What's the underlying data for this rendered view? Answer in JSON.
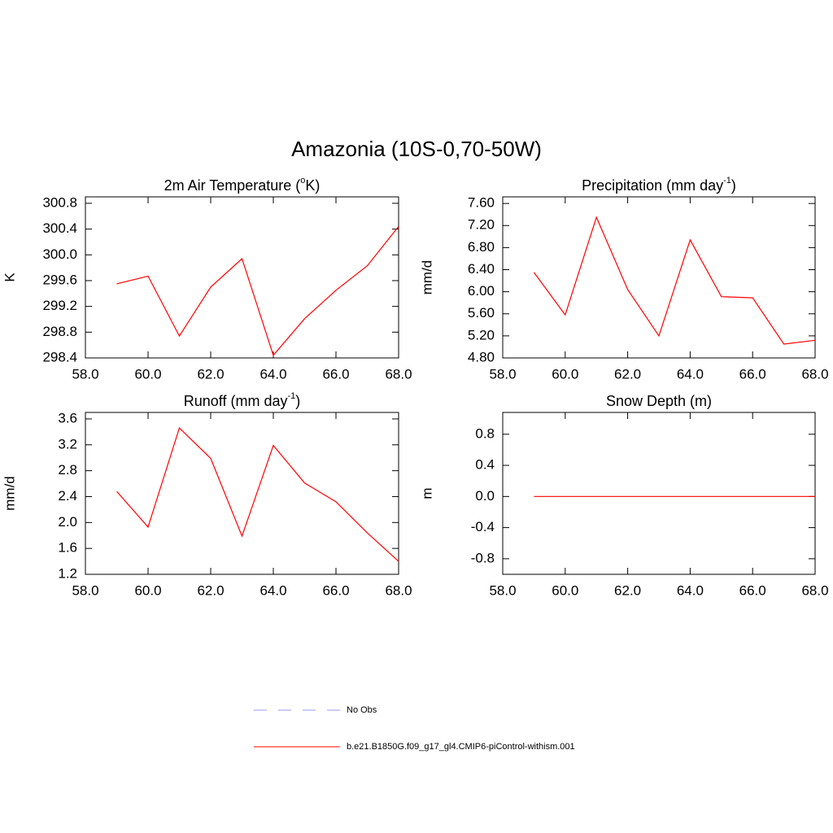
{
  "title": "Amazonia (10S-0,70-50W)",
  "legend": [
    {
      "name": "No Obs",
      "color": "#9999ff",
      "dash": true
    },
    {
      "name": "b.e21.B1850G.f09_g17_gl4.CMIP6-piControl-withism.001",
      "color": "#ff0000",
      "dash": false
    }
  ],
  "chart_data": [
    {
      "type": "line",
      "title": [
        {
          "text": "2m Air Temperature ("
        },
        {
          "text": "o",
          "sup": true
        },
        {
          "text": "K)"
        }
      ],
      "ylabel": "K",
      "x": [
        59,
        60,
        61,
        62,
        63,
        64,
        65,
        66,
        67,
        68
      ],
      "series": [
        {
          "color": "#ff0000",
          "values": [
            299.55,
            299.67,
            298.74,
            299.5,
            299.94,
            298.44,
            299.01,
            299.45,
            299.83,
            300.44
          ]
        }
      ],
      "xlim": [
        58,
        68
      ],
      "xticks": [
        {
          "value": 58,
          "label": "58.0"
        },
        {
          "value": 60,
          "label": "60.0"
        },
        {
          "value": 62,
          "label": "62.0"
        },
        {
          "value": 64,
          "label": "64.0"
        },
        {
          "value": 66,
          "label": "66.0"
        },
        {
          "value": 68,
          "label": "68.0"
        }
      ],
      "ylim": [
        298.4,
        300.9
      ],
      "yticks": [
        298.4,
        298.8,
        299.2,
        299.6,
        {
          "value": 300.0,
          "label": "300.0"
        },
        300.4,
        300.8
      ]
    },
    {
      "type": "line",
      "title": [
        {
          "text": "Precipitation (mm day"
        },
        {
          "text": "-1",
          "sup": true
        },
        {
          "text": ")"
        }
      ],
      "ylabel": "mm/d",
      "x": [
        59,
        60,
        61,
        62,
        63,
        64,
        65,
        66,
        67,
        68
      ],
      "series": [
        {
          "color": "#ff0000",
          "values": [
            6.35,
            5.58,
            7.35,
            6.04,
            5.2,
            6.94,
            5.91,
            5.89,
            5.05,
            5.12
          ]
        }
      ],
      "xlim": [
        58,
        68
      ],
      "xticks": [
        {
          "value": 58,
          "label": "58.0"
        },
        {
          "value": 60,
          "label": "60.0"
        },
        {
          "value": 62,
          "label": "62.0"
        },
        {
          "value": 64,
          "label": "64.0"
        },
        {
          "value": 66,
          "label": "66.0"
        },
        {
          "value": 68,
          "label": "68.0"
        }
      ],
      "ylim": [
        4.8,
        7.72
      ],
      "yticks": [
        {
          "value": 4.8,
          "label": "4.80"
        },
        {
          "value": 5.2,
          "label": "5.20"
        },
        {
          "value": 5.6,
          "label": "5.60"
        },
        {
          "value": 6.0,
          "label": "6.00"
        },
        {
          "value": 6.4,
          "label": "6.40"
        },
        {
          "value": 6.8,
          "label": "6.80"
        },
        {
          "value": 7.2,
          "label": "7.20"
        },
        {
          "value": 7.6,
          "label": "7.60"
        }
      ]
    },
    {
      "type": "line",
      "title": [
        {
          "text": "Runoff (mm day"
        },
        {
          "text": "-1",
          "sup": true
        },
        {
          "text": ")"
        }
      ],
      "ylabel": "mm/d",
      "x": [
        59,
        60,
        61,
        62,
        63,
        64,
        65,
        66,
        67,
        68
      ],
      "series": [
        {
          "color": "#ff0000",
          "values": [
            2.48,
            1.93,
            3.46,
            2.99,
            1.79,
            3.19,
            2.61,
            2.32,
            1.84,
            1.4
          ]
        }
      ],
      "xlim": [
        58,
        68
      ],
      "xticks": [
        {
          "value": 58,
          "label": "58.0"
        },
        {
          "value": 60,
          "label": "60.0"
        },
        {
          "value": 62,
          "label": "62.0"
        },
        {
          "value": 64,
          "label": "64.0"
        },
        {
          "value": 66,
          "label": "66.0"
        },
        {
          "value": 68,
          "label": "68.0"
        }
      ],
      "ylim": [
        1.2,
        3.7
      ],
      "yticks": [
        1.2,
        1.6,
        {
          "value": 2.0,
          "label": "2.0"
        },
        2.4,
        2.8,
        3.2,
        3.6
      ]
    },
    {
      "type": "line",
      "title": [
        {
          "text": "Snow Depth (m)"
        }
      ],
      "ylabel": "m",
      "x": [
        59,
        60,
        61,
        62,
        63,
        64,
        65,
        66,
        67,
        68
      ],
      "series": [
        {
          "color": "#ff0000",
          "values": [
            0,
            0,
            0,
            0,
            0,
            0,
            0,
            0,
            0,
            0
          ]
        }
      ],
      "xlim": [
        58,
        68
      ],
      "xticks": [
        {
          "value": 58,
          "label": "58.0"
        },
        {
          "value": 60,
          "label": "60.0"
        },
        {
          "value": 62,
          "label": "62.0"
        },
        {
          "value": 64,
          "label": "64.0"
        },
        {
          "value": 66,
          "label": "66.0"
        },
        {
          "value": 68,
          "label": "68.0"
        }
      ],
      "ylim": [
        -1.0,
        1.08
      ],
      "yticks": [
        -0.8,
        -0.4,
        {
          "value": 0.0,
          "label": "0.0"
        },
        0.4,
        0.8
      ]
    }
  ]
}
